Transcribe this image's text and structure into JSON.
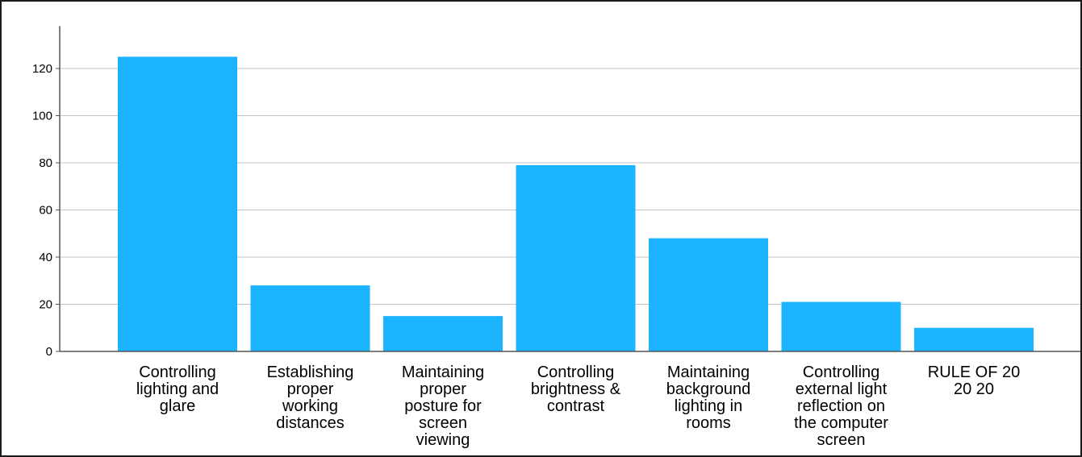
{
  "chart_data": {
    "type": "bar",
    "title": "",
    "xlabel": "",
    "ylabel": "",
    "categories": [
      "Controlling lighting and glare",
      "Establishing proper working distances",
      "Maintaining proper posture for screen viewing",
      "Controlling brightness & contrast",
      "Maintaining background lighting in rooms",
      "Controlling external light reflection on the computer screen",
      "RULE OF 20 20 20"
    ],
    "category_label_lines": [
      [
        "Controlling",
        "lighting and",
        "glare"
      ],
      [
        "Establishing",
        "proper",
        "working",
        "distances"
      ],
      [
        "Maintaining",
        "proper",
        "posture for",
        "screen",
        "viewing"
      ],
      [
        "Controlling",
        "brightness &",
        "contrast"
      ],
      [
        "Maintaining",
        "background",
        "lighting in",
        "rooms"
      ],
      [
        "Controlling",
        "external light",
        "reflection on",
        "the computer",
        "screen"
      ],
      [
        "RULE OF 20",
        "20 20"
      ]
    ],
    "values": [
      125,
      28,
      15,
      79,
      48,
      21,
      10
    ],
    "ylim": [
      0,
      138
    ],
    "yticks": [
      0,
      20,
      40,
      60,
      80,
      100,
      120
    ],
    "grid": true,
    "legend": "none",
    "bar_color": "#1cb3ff",
    "grid_color": "#c4c4c4",
    "axis_color": "#555555"
  }
}
